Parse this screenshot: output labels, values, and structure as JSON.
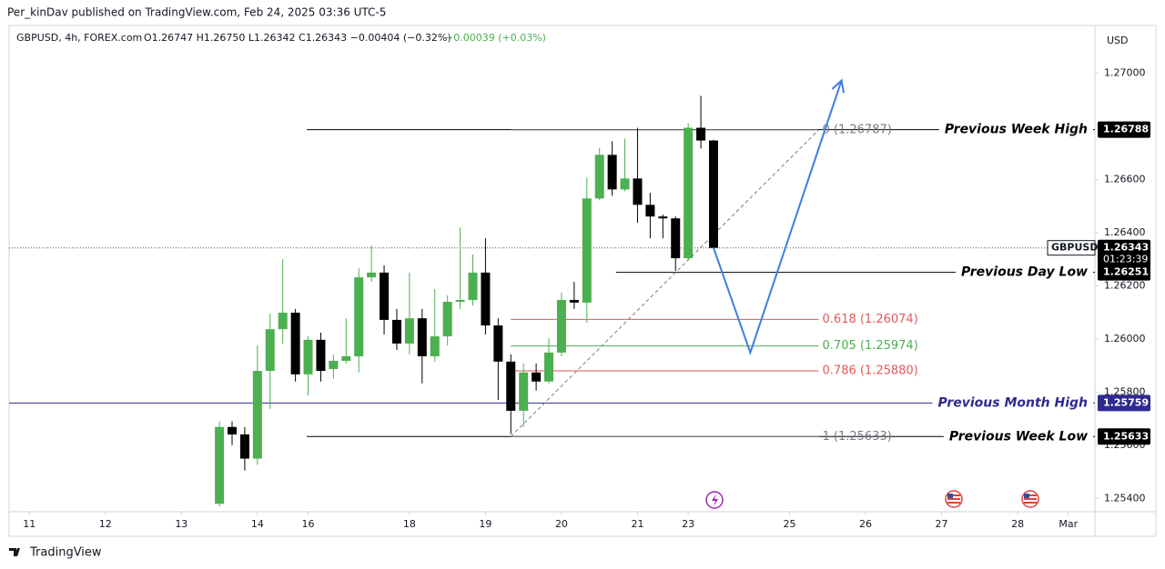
{
  "chart_data": {
    "type": "candlestick",
    "publisher": "Per_kinDav published on TradingView.com, Feb 24, 2025 03:36 UTC-5",
    "symbol_info": "GBPUSD, 4h, FOREX.com",
    "ohlc_info": "O1.26747 H1.26750 L1.26342 C1.26343 −0.00404 (−0.32%)",
    "change_info": "+0.00039 (+0.03%)",
    "currency": "USD",
    "brand": "TradingView",
    "up_color": "#4caf50",
    "down_color": "#000000",
    "x": [
      1,
      2,
      3,
      4,
      5,
      6,
      7,
      8,
      9,
      10,
      11,
      12,
      13,
      14,
      15,
      16,
      17,
      18,
      19,
      20,
      21,
      22,
      23,
      24,
      25,
      26,
      27,
      28,
      29,
      30,
      31,
      32,
      33,
      34,
      35,
      36,
      37,
      38,
      39,
      40
    ],
    "open": [
      1.2538,
      1.25669,
      1.25641,
      1.2555,
      1.2588,
      1.26037,
      1.26099,
      1.25867,
      1.25997,
      1.25887,
      1.25918,
      1.25935,
      1.26232,
      1.2625,
      1.26072,
      1.25983,
      1.26078,
      1.25935,
      1.2601,
      1.2614,
      1.26147,
      1.2625,
      1.26051,
      1.25915,
      1.2573,
      1.25874,
      1.2584,
      1.25949,
      1.26147,
      1.26137,
      1.26529,
      1.26693,
      1.26563,
      1.26604,
      1.26505,
      1.26461,
      1.26454,
      1.26304,
      1.26795,
      1.26747
    ],
    "high": [
      1.2569,
      1.2569,
      1.25669,
      1.25976,
      1.26095,
      1.263,
      1.26113,
      1.2601,
      1.26024,
      1.25942,
      1.26078,
      1.26266,
      1.26352,
      1.26277,
      1.26113,
      1.2625,
      1.26113,
      1.26188,
      1.26164,
      1.2642,
      1.26318,
      1.26379,
      1.26078,
      1.25942,
      1.25908,
      1.25908,
      1.26003,
      1.26174,
      1.26215,
      1.26607,
      1.2672,
      1.26744,
      1.26754,
      1.26795,
      1.2655,
      1.26468,
      1.26461,
      1.26812,
      1.26915,
      1.2675
    ],
    "low": [
      1.2537,
      1.25601,
      1.25505,
      1.25526,
      1.25737,
      1.25983,
      1.2584,
      1.25788,
      1.2584,
      1.2585,
      1.25908,
      1.25874,
      1.26215,
      1.26017,
      1.25959,
      1.25942,
      1.25833,
      1.25915,
      1.25976,
      1.26113,
      1.26126,
      1.26017,
      1.25771,
      1.25642,
      1.25669,
      1.25806,
      1.25833,
      1.25935,
      1.26113,
      1.26061,
      1.26522,
      1.26539,
      1.26556,
      1.26437,
      1.26379,
      1.26379,
      1.26256,
      1.26296,
      1.26717,
      1.26342
    ],
    "close": [
      1.25669,
      1.25641,
      1.2555,
      1.2588,
      1.26037,
      1.26099,
      1.25867,
      1.25997,
      1.2588,
      1.25918,
      1.25935,
      1.26232,
      1.2625,
      1.26072,
      1.25983,
      1.26078,
      1.25935,
      1.2601,
      1.2614,
      1.26147,
      1.2625,
      1.26051,
      1.25915,
      1.2573,
      1.25874,
      1.2584,
      1.25949,
      1.26147,
      1.26137,
      1.26529,
      1.26693,
      1.26563,
      1.26604,
      1.26505,
      1.26461,
      1.26454,
      1.26304,
      1.26795,
      1.26747,
      1.26343
    ],
    "xlim": [
      -15.6,
      70.1
    ],
    "xticks": [
      {
        "value": -14,
        "label": "11"
      },
      {
        "value": -8,
        "label": "12"
      },
      {
        "value": -2,
        "label": "13"
      },
      {
        "value": 4,
        "label": "14"
      },
      {
        "value": 8,
        "label": "16"
      },
      {
        "value": 16,
        "label": "18"
      },
      {
        "value": 22,
        "label": "19"
      },
      {
        "value": 28,
        "label": "20"
      },
      {
        "value": 34,
        "label": "21"
      },
      {
        "value": 38,
        "label": "23"
      },
      {
        "value": 46,
        "label": "25"
      },
      {
        "value": 52,
        "label": "26"
      },
      {
        "value": 58,
        "label": "27"
      },
      {
        "value": 64,
        "label": "28"
      },
      {
        "value": 68,
        "label": "Mar"
      }
    ],
    "ylim": [
      1.2535,
      1.2718
    ],
    "yticks": [
      {
        "value": 1.254,
        "label": "1.25400"
      },
      {
        "value": 1.256,
        "label": "1.25600"
      },
      {
        "value": 1.258,
        "label": "1.25800"
      },
      {
        "value": 1.26,
        "label": "1.26000"
      },
      {
        "value": 1.262,
        "label": "1.26200"
      },
      {
        "value": 1.264,
        "label": "1.26400"
      },
      {
        "value": 1.266,
        "label": "1.26600"
      },
      {
        "value": 1.27,
        "label": "1.27000"
      }
    ],
    "levels": [
      {
        "name": "Previous Week High",
        "value": 1.26788,
        "color": "#000000",
        "x_start": 7.9
      },
      {
        "name": "Previous Day Low",
        "value": 1.26251,
        "color": "#000000",
        "x_start": 32.3
      },
      {
        "name": "Previous Month High",
        "value": 1.25759,
        "color": "#2e2a8e",
        "x_start": -15.6
      },
      {
        "name": "Previous Week Low",
        "value": 1.25633,
        "color": "#000000",
        "x_start": 7.9
      }
    ],
    "fib": {
      "x": [
        24,
        48.3
      ],
      "levels": [
        {
          "label": "0 (1.26787)",
          "value": 1.26787,
          "color": "#787b86"
        },
        {
          "label": "0.618 (1.26074)",
          "value": 1.26074,
          "color": "#e05a5a"
        },
        {
          "label": "0.705 (1.25974)",
          "value": 1.25974,
          "color": "#4caf50"
        },
        {
          "label": "0.786 (1.25880)",
          "value": 1.2588,
          "color": "#e05a5a"
        },
        {
          "label": "1 (1.25633)",
          "value": 1.25633,
          "color": "#787b86"
        }
      ]
    },
    "trendline": {
      "x": [
        24,
        48.3
      ],
      "y": [
        1.25633,
        1.26787
      ],
      "color": "#787b86"
    },
    "projection": {
      "x": [
        40,
        42.9,
        50.1
      ],
      "y": [
        1.26343,
        1.25949,
        1.26973
      ],
      "color": "#3d7fe0"
    },
    "last": {
      "symbol": "GBPUSD",
      "value": 1.26343,
      "countdown": "01:23:39"
    }
  }
}
